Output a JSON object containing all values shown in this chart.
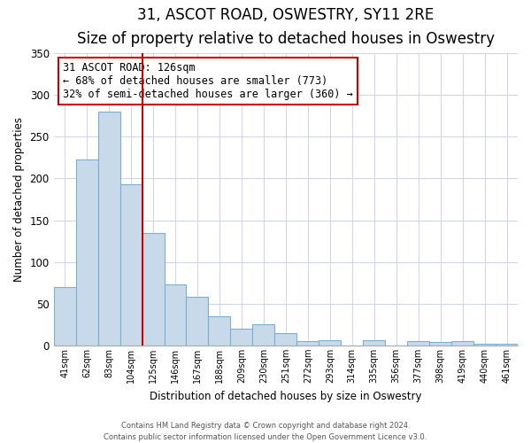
{
  "title": "31, ASCOT ROAD, OSWESTRY, SY11 2RE",
  "subtitle": "Size of property relative to detached houses in Oswestry",
  "xlabel": "Distribution of detached houses by size in Oswestry",
  "ylabel": "Number of detached properties",
  "categories": [
    "41sqm",
    "62sqm",
    "83sqm",
    "104sqm",
    "125sqm",
    "146sqm",
    "167sqm",
    "188sqm",
    "209sqm",
    "230sqm",
    "251sqm",
    "272sqm",
    "293sqm",
    "314sqm",
    "335sqm",
    "356sqm",
    "377sqm",
    "398sqm",
    "419sqm",
    "440sqm",
    "461sqm"
  ],
  "values": [
    70,
    223,
    280,
    193,
    135,
    73,
    58,
    35,
    20,
    25,
    15,
    5,
    6,
    0,
    6,
    0,
    5,
    4,
    5,
    2,
    2
  ],
  "bar_color": "#c8daea",
  "bar_edge_color": "#7aafd4",
  "vline_x": 3.5,
  "vline_color": "#cc0000",
  "ylim": [
    0,
    350
  ],
  "yticks": [
    0,
    50,
    100,
    150,
    200,
    250,
    300,
    350
  ],
  "annotation_line1": "31 ASCOT ROAD: 126sqm",
  "annotation_line2": "← 68% of detached houses are smaller (773)",
  "annotation_line3": "32% of semi-detached houses are larger (360) →",
  "footer1": "Contains HM Land Registry data © Crown copyright and database right 2024.",
  "footer2": "Contains public sector information licensed under the Open Government Licence v3.0.",
  "background_color": "#ffffff",
  "title_fontsize": 12,
  "subtitle_fontsize": 10,
  "grid_color": "#d0d8e8"
}
